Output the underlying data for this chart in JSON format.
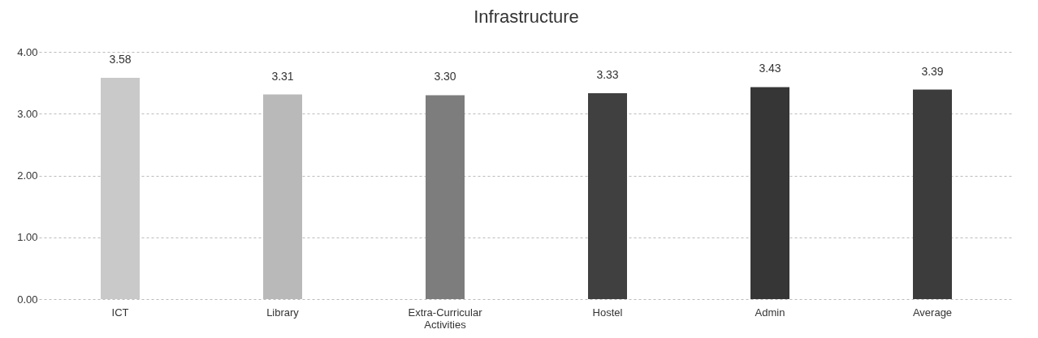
{
  "chart_data": {
    "type": "bar",
    "title": "Infrastructure",
    "categories": [
      "ICT",
      "Library",
      "Extra-Curricular Activities",
      "Hostel",
      "Admin",
      "Average"
    ],
    "values": [
      3.58,
      3.31,
      3.3,
      3.33,
      3.43,
      3.39
    ],
    "colors": [
      "#c9c9c9",
      "#b9b9b9",
      "#7d7d7d",
      "#404040",
      "#363636",
      "#3c3c3c"
    ],
    "value_labels": [
      "3.58",
      "3.31",
      "3.30",
      "3.33",
      "3.43",
      "3.39"
    ],
    "ylim": [
      0,
      4
    ],
    "yticks": [
      {
        "value": 0,
        "label": "0.00"
      },
      {
        "value": 1,
        "label": "1.00"
      },
      {
        "value": 2,
        "label": "2.00"
      },
      {
        "value": 3,
        "label": "3.00"
      },
      {
        "value": 4,
        "label": "4.00"
      }
    ],
    "grid": "y"
  }
}
